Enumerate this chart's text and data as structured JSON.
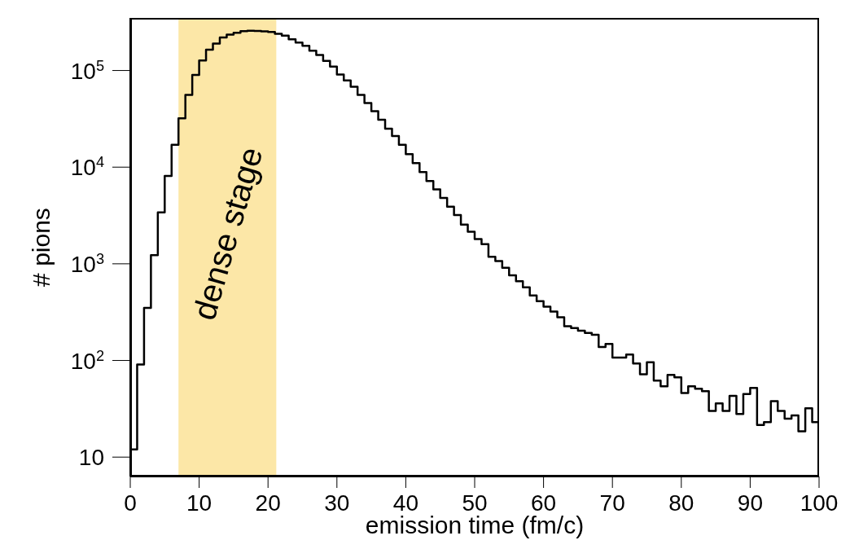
{
  "chart_data": {
    "type": "histogram",
    "xlabel": "emission time (fm/c)",
    "ylabel": "# pions",
    "log": "y",
    "color": "#000000",
    "bins": [
      0,
      1,
      2,
      3,
      4,
      5,
      6,
      7,
      8,
      9,
      10,
      11,
      12,
      13,
      14,
      15,
      16,
      17,
      18,
      19,
      20,
      21,
      22,
      23,
      24,
      25,
      26,
      27,
      28,
      29,
      30,
      31,
      32,
      33,
      34,
      35,
      36,
      37,
      38,
      39,
      40,
      41,
      42,
      43,
      44,
      45,
      46,
      47,
      48,
      49,
      50,
      51,
      52,
      53,
      54,
      55,
      56,
      57,
      58,
      59,
      60,
      61,
      62,
      63,
      64,
      65,
      66,
      67,
      68,
      69,
      70,
      71,
      72,
      73,
      74,
      75,
      76,
      77,
      78,
      79,
      80,
      81,
      82,
      83,
      84,
      85,
      86,
      87,
      88,
      89,
      90,
      91,
      92,
      93,
      94,
      95,
      96,
      97,
      98,
      99,
      100
    ],
    "values": [
      12,
      91,
      350,
      1230,
      3400,
      8100,
      17000,
      32000,
      56000,
      90000,
      127000,
      164000,
      190000,
      220000,
      235000,
      246000,
      255000,
      258000,
      257000,
      254000,
      250000,
      240000,
      230000,
      210000,
      195000,
      180000,
      160000,
      145000,
      126000,
      110000,
      91000,
      79000,
      68000,
      56000,
      46000,
      38000,
      31000,
      25000,
      21000,
      17000,
      13600,
      11000,
      8900,
      7200,
      5900,
      4800,
      3900,
      3200,
      2550,
      2150,
      1800,
      1600,
      1180,
      1070,
      910,
      760,
      660,
      570,
      470,
      410,
      360,
      320,
      280,
      226,
      216,
      203,
      193,
      184,
      138,
      148,
      107,
      107,
      115,
      93,
      72,
      96,
      62,
      54,
      71,
      67,
      46,
      54,
      51,
      48,
      30,
      36,
      30,
      43,
      28,
      45,
      52,
      21.5,
      23,
      38,
      30,
      25,
      27,
      18.5,
      32,
      23
    ],
    "xlim": [
      0,
      100
    ],
    "xticks": [
      0,
      10,
      20,
      30,
      40,
      50,
      60,
      70,
      80,
      90,
      100
    ],
    "ylim": [
      6.3,
      350000
    ],
    "yticks": [
      10,
      {
        "value": 100,
        "label": "10$^{2}$"
      },
      {
        "value": 1000,
        "label": "10$^{3}$"
      },
      {
        "value": 10000,
        "label": "10$^{4}$"
      },
      {
        "value": 100000,
        "label": "10$^{5}$"
      }
    ],
    "bands": [
      {
        "axis": "x",
        "from": 7,
        "to": 21.2,
        "label": "dense stage",
        "color": "#fce7a7"
      }
    ],
    "grid": false,
    "legend": false
  }
}
